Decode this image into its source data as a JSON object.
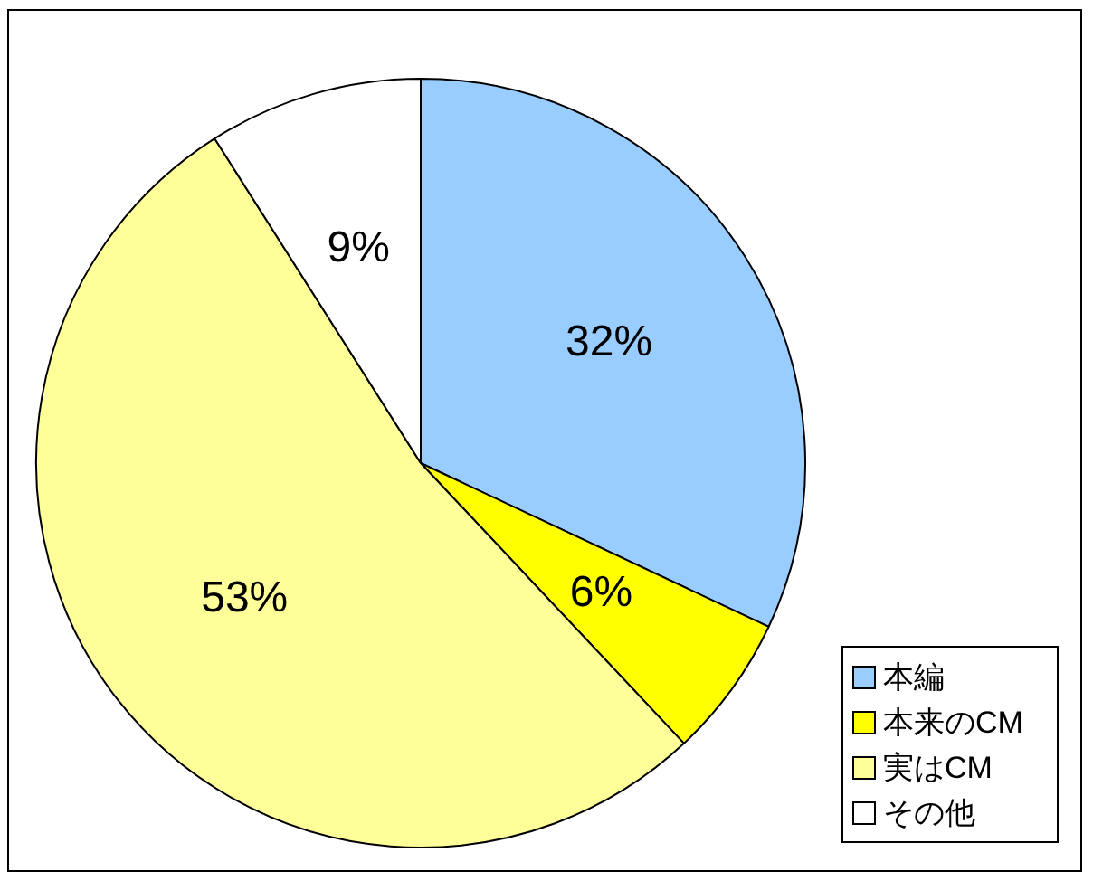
{
  "chart_data": {
    "type": "pie",
    "categories": [
      "本編",
      "本来のCM",
      "実はCM",
      "その他"
    ],
    "values": [
      32,
      6,
      53,
      9
    ],
    "colors": [
      "#99ccff",
      "#ffff00",
      "#ffff99",
      "#ffffff"
    ],
    "value_labels": [
      "32%",
      "6%",
      "53%",
      "9%"
    ],
    "legend": "bottom right"
  }
}
